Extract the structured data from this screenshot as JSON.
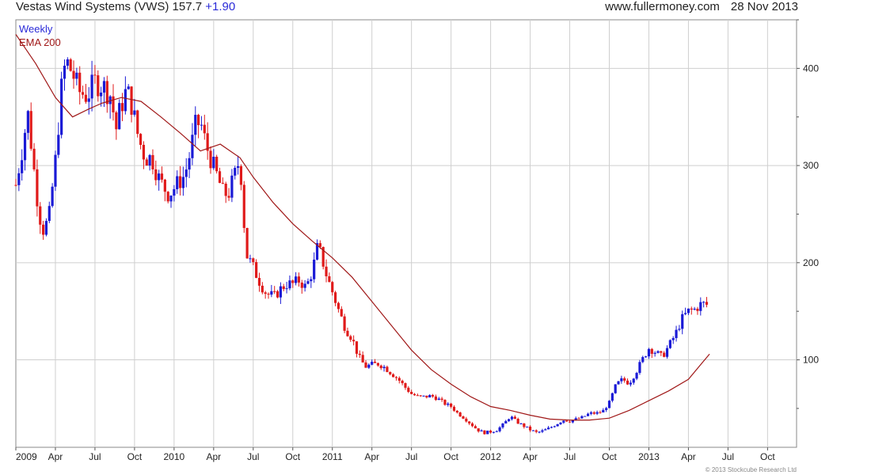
{
  "header": {
    "title": "Vestas Wind Systems (VWS) 157.7",
    "change": "+1.90",
    "site": "www.fullermoney.com",
    "date": "28 Nov 2013"
  },
  "legend": {
    "weekly": "Weekly",
    "ema": "EMA 200"
  },
  "copyright": "© 2013 Stockcube Research Ltd",
  "colors": {
    "up": "#1a1ad6",
    "down": "#e01a1a",
    "ema": "#a01818",
    "grid": "#cfcfcf",
    "weekly_text": "#2a2ad8",
    "ema_text": "#a01818"
  },
  "chart_data": {
    "type": "candlestick",
    "frequency": "weekly",
    "y_axis": {
      "ticks": [
        100,
        200,
        300,
        400
      ],
      "range": [
        10,
        450
      ],
      "side": "right"
    },
    "x_axis": {
      "labels": [
        "2009",
        "Apr",
        "Jul",
        "Oct",
        "2010",
        "Apr",
        "Jul",
        "Oct",
        "2011",
        "Apr",
        "Jul",
        "Oct",
        "2012",
        "Apr",
        "Jul",
        "Oct",
        "2013",
        "Apr",
        "Jul",
        "Oct"
      ],
      "range_months": [
        0,
        59.2
      ]
    },
    "grid": true,
    "price_path": [
      [
        0,
        280
      ],
      [
        0.5,
        318
      ],
      [
        0.9,
        355
      ],
      [
        1.6,
        268
      ],
      [
        2.0,
        232
      ],
      [
        2.5,
        245
      ],
      [
        3.0,
        305
      ],
      [
        3.5,
        385
      ],
      [
        3.8,
        408
      ],
      [
        4.3,
        395
      ],
      [
        4.8,
        376
      ],
      [
        5.4,
        372
      ],
      [
        6.0,
        386
      ],
      [
        6.6,
        382
      ],
      [
        7.2,
        372
      ],
      [
        7.6,
        337
      ],
      [
        7.9,
        358
      ],
      [
        8.4,
        378
      ],
      [
        8.8,
        362
      ],
      [
        9.3,
        328
      ],
      [
        9.8,
        308
      ],
      [
        10.3,
        308
      ],
      [
        10.8,
        288
      ],
      [
        11.2,
        278
      ],
      [
        11.6,
        270
      ],
      [
        12.3,
        282
      ],
      [
        12.8,
        290
      ],
      [
        13.2,
        312
      ],
      [
        13.6,
        340
      ],
      [
        14.0,
        345
      ],
      [
        14.4,
        322
      ],
      [
        14.9,
        302
      ],
      [
        15.3,
        288
      ],
      [
        15.7,
        272
      ],
      [
        16.1,
        270
      ],
      [
        16.6,
        290
      ],
      [
        17.0,
        308
      ],
      [
        17.2,
        258
      ],
      [
        17.5,
        208
      ],
      [
        18.0,
        195
      ],
      [
        18.5,
        180
      ],
      [
        19.0,
        168
      ],
      [
        19.6,
        165
      ],
      [
        20.0,
        172
      ],
      [
        20.5,
        178
      ],
      [
        21.0,
        178
      ],
      [
        21.5,
        182
      ],
      [
        22.0,
        174
      ],
      [
        22.5,
        192
      ],
      [
        22.9,
        218
      ],
      [
        23.2,
        205
      ],
      [
        23.6,
        185
      ],
      [
        24.0,
        170
      ],
      [
        24.5,
        150
      ],
      [
        25.0,
        132
      ],
      [
        25.5,
        122
      ],
      [
        26.0,
        103
      ],
      [
        26.5,
        93
      ],
      [
        27.0,
        95
      ],
      [
        27.5,
        96
      ],
      [
        28.0,
        92
      ],
      [
        28.5,
        86
      ],
      [
        29.0,
        80
      ],
      [
        29.5,
        72
      ],
      [
        30.0,
        65
      ],
      [
        30.5,
        62
      ],
      [
        31.0,
        62
      ],
      [
        31.5,
        63
      ],
      [
        32.0,
        60
      ],
      [
        32.5,
        55
      ],
      [
        33.0,
        52
      ],
      [
        33.5,
        45
      ],
      [
        34.0,
        40
      ],
      [
        34.5,
        34
      ],
      [
        35.0,
        28
      ],
      [
        35.5,
        25
      ],
      [
        36.0,
        26
      ],
      [
        36.5,
        28
      ],
      [
        37.0,
        34
      ],
      [
        37.5,
        42
      ],
      [
        38.0,
        36
      ],
      [
        38.5,
        32
      ],
      [
        39.0,
        28
      ],
      [
        39.5,
        25
      ],
      [
        40.0,
        27
      ],
      [
        40.5,
        30
      ],
      [
        41.0,
        34
      ],
      [
        41.5,
        38
      ],
      [
        42.0,
        37
      ],
      [
        42.5,
        39
      ],
      [
        43.0,
        41
      ],
      [
        43.5,
        45
      ],
      [
        44.0,
        45
      ],
      [
        44.5,
        47
      ],
      [
        45.0,
        56
      ],
      [
        45.5,
        74
      ],
      [
        46.0,
        80
      ],
      [
        46.5,
        76
      ],
      [
        47.0,
        87
      ],
      [
        47.5,
        100
      ],
      [
        48.0,
        112
      ],
      [
        48.5,
        108
      ],
      [
        49.0,
        103
      ],
      [
        49.5,
        114
      ],
      [
        50.0,
        126
      ],
      [
        50.5,
        142
      ],
      [
        51.0,
        150
      ],
      [
        51.5,
        152
      ],
      [
        52.0,
        158
      ],
      [
        52.6,
        156
      ]
    ],
    "ema_path": [
      [
        0,
        435
      ],
      [
        1.5,
        405
      ],
      [
        3.0,
        370
      ],
      [
        4.3,
        350
      ],
      [
        5.5,
        358
      ],
      [
        6.5,
        364
      ],
      [
        8.0,
        370
      ],
      [
        9.5,
        366
      ],
      [
        11.0,
        350
      ],
      [
        12.5,
        333
      ],
      [
        14.0,
        315
      ],
      [
        15.5,
        322
      ],
      [
        17.0,
        308
      ],
      [
        18.0,
        288
      ],
      [
        19.5,
        262
      ],
      [
        21.0,
        240
      ],
      [
        22.5,
        222
      ],
      [
        24.0,
        205
      ],
      [
        25.5,
        185
      ],
      [
        27.0,
        160
      ],
      [
        28.5,
        135
      ],
      [
        30.0,
        110
      ],
      [
        31.5,
        90
      ],
      [
        33.0,
        75
      ],
      [
        34.5,
        62
      ],
      [
        36.0,
        52
      ],
      [
        37.5,
        48
      ],
      [
        39.0,
        43
      ],
      [
        40.5,
        39
      ],
      [
        42.0,
        38
      ],
      [
        43.5,
        38
      ],
      [
        45.0,
        40
      ],
      [
        46.5,
        48
      ],
      [
        48.0,
        58
      ],
      [
        49.5,
        68
      ],
      [
        51.0,
        80
      ],
      [
        52.6,
        106
      ]
    ]
  }
}
